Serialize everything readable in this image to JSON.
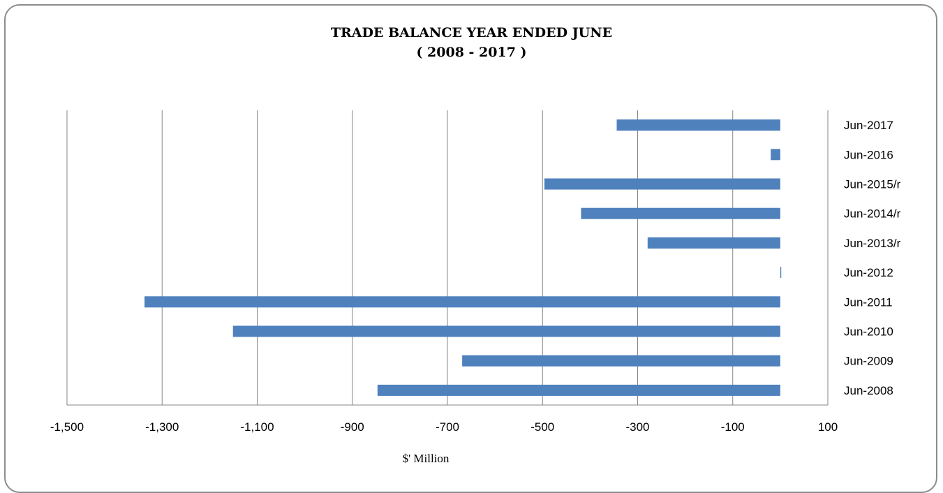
{
  "chart_data": {
    "type": "bar",
    "orientation": "horizontal",
    "title_line1": "TRADE BALANCE YEAR ENDED JUNE",
    "title_line2": "( 2008 - 2017 )",
    "xlabel": "$' Million",
    "ylabel": "",
    "xlim": [
      -1500,
      100
    ],
    "xticks": [
      -1500,
      -1300,
      -1100,
      -900,
      -700,
      -500,
      -300,
      -100,
      100
    ],
    "xtick_labels": [
      "-1,500",
      "-1,300",
      "-1,100",
      "-900",
      "-700",
      "-500",
      "-300",
      "-100",
      "100"
    ],
    "categories": [
      "Jun-2008",
      "Jun-2009",
      "Jun-2010",
      "Jun-2011",
      "Jun-2012",
      "Jun-2013/r",
      "Jun-2014/r",
      "Jun-2015/r",
      "Jun-2016",
      "Jun-2017"
    ],
    "values": [
      -847,
      -669,
      -1151,
      -1337,
      2,
      -279,
      -419,
      -496,
      -20,
      -344
    ],
    "grid": true,
    "legend": "none",
    "bar_color": "#4f81bd",
    "grid_color": "#868686"
  }
}
